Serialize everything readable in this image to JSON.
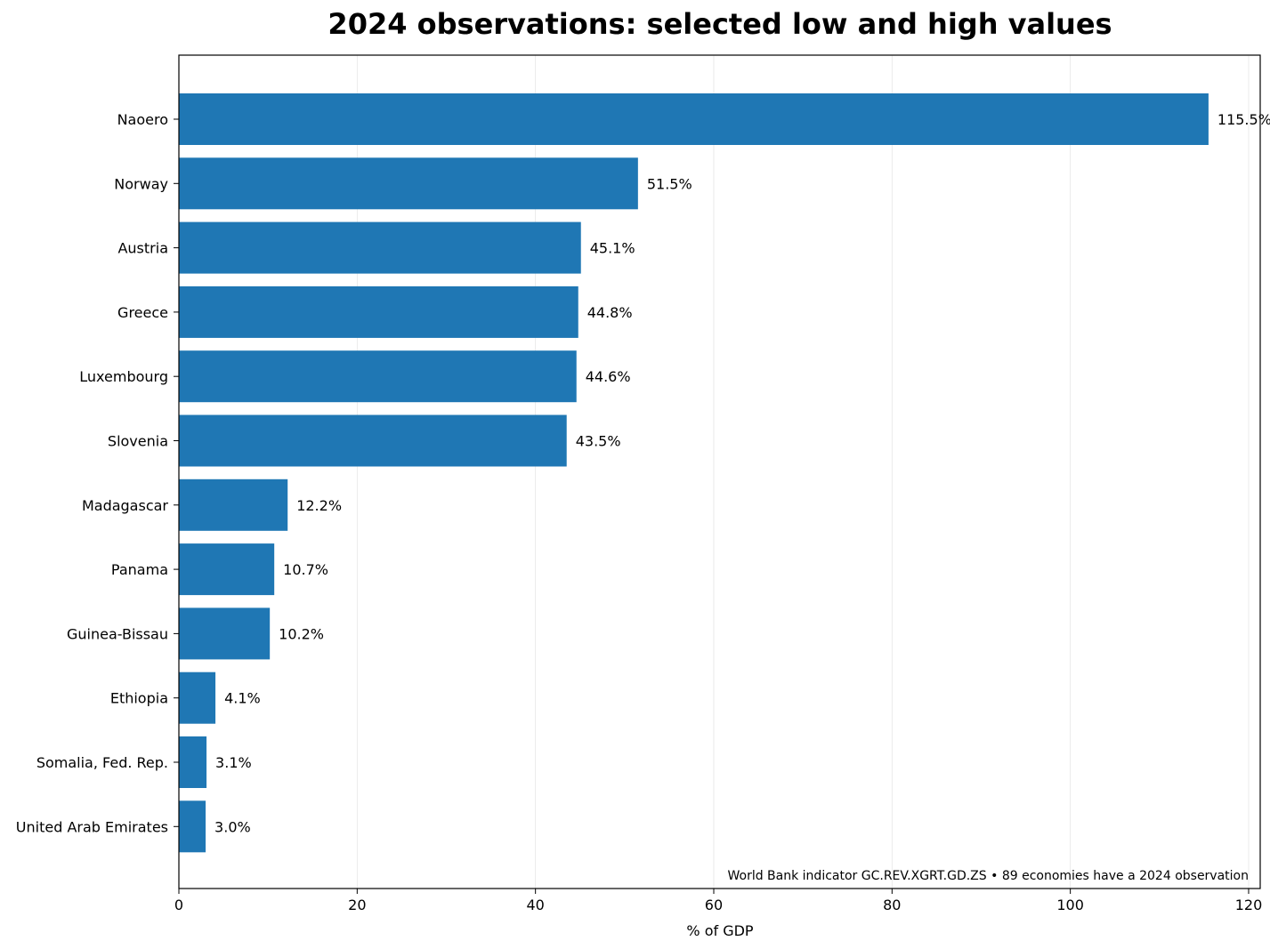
{
  "chart_data": {
    "type": "bar",
    "orientation": "horizontal",
    "title": "2024 observations: selected low and high values",
    "xlabel": "% of GDP",
    "ylabel": "",
    "xlim": [
      0,
      121.3
    ],
    "xticks": [
      0,
      20,
      40,
      60,
      80,
      100,
      120
    ],
    "grid": "x",
    "bar_color": "#1f77b4",
    "categories": [
      "Naoero",
      "Norway",
      "Austria",
      "Greece",
      "Luxembourg",
      "Slovenia",
      "Madagascar",
      "Panama",
      "Guinea-Bissau",
      "Ethiopia",
      "Somalia, Fed. Rep.",
      "United Arab Emirates"
    ],
    "values": [
      115.5,
      51.5,
      45.1,
      44.8,
      44.6,
      43.5,
      12.2,
      10.7,
      10.2,
      4.1,
      3.1,
      3.0
    ],
    "data_labels": [
      "115.5%",
      "51.5%",
      "45.1%",
      "44.8%",
      "44.6%",
      "43.5%",
      "12.2%",
      "10.7%",
      "10.2%",
      "4.1%",
      "3.1%",
      "3.0%"
    ],
    "annotation": "World Bank indicator GC.REV.XGRT.GD.ZS • 89 economies have a 2024 observation"
  }
}
